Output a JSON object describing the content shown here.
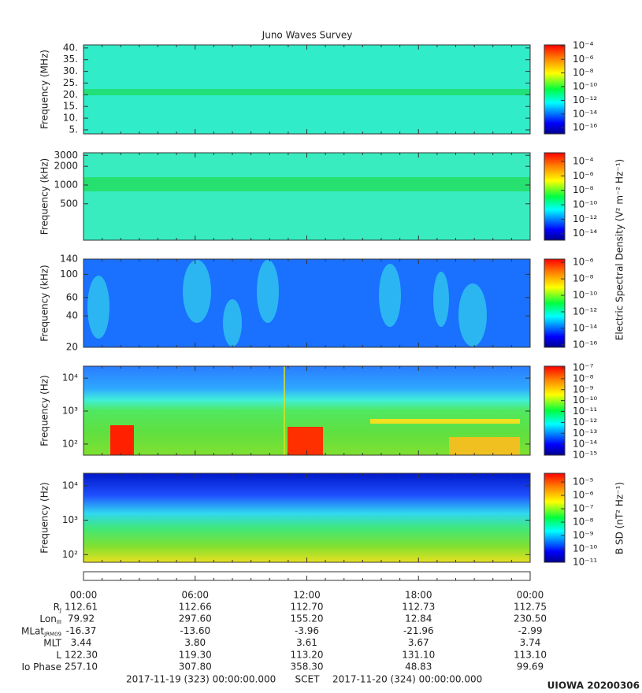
{
  "title": "Juno Waves Survey",
  "chart_data": [
    {
      "type": "spectrogram",
      "ylabel": "Frequency (MHz)",
      "yscale": "linear",
      "ylim": [
        3.3,
        41.3
      ],
      "yticks": [
        {
          "value": 40,
          "label": "40."
        },
        {
          "value": 35,
          "label": "35."
        },
        {
          "value": 30,
          "label": "30."
        },
        {
          "value": 25,
          "label": "25."
        },
        {
          "value": 20,
          "label": "20."
        },
        {
          "value": 15,
          "label": "15."
        },
        {
          "value": 10,
          "label": "10."
        },
        {
          "value": 5,
          "label": "5."
        }
      ],
      "zscale": "log",
      "zlim": [
        1.26e-17,
        0.000126
      ],
      "zticks": [
        {
          "value": 0.0001,
          "label": "10⁻⁴"
        },
        {
          "value": 1e-06,
          "label": "10⁻⁶"
        },
        {
          "value": 1e-08,
          "label": "10⁻⁸"
        },
        {
          "value": 1e-10,
          "label": "10⁻¹⁰"
        },
        {
          "value": 1e-12,
          "label": "10⁻¹²"
        },
        {
          "value": 1e-14,
          "label": "10⁻¹⁴"
        },
        {
          "value": 1e-16,
          "label": "10⁻¹⁶"
        }
      ]
    },
    {
      "type": "spectrogram",
      "ylabel": "Frequency (kHz)",
      "yscale": "log",
      "ylim": [
        130,
        3300
      ],
      "yticks": [
        3000,
        2000,
        1000,
        500
      ],
      "zscale": "log",
      "zlim": [
        1.26e-15,
        0.0016
      ],
      "zlabel": "Electric Spectral Density (V² m⁻² Hz⁻¹)",
      "zticks": [
        {
          "value": 0.0001,
          "label": "10⁻⁴"
        },
        {
          "value": 1e-06,
          "label": "10⁻⁶"
        },
        {
          "value": 1e-08,
          "label": "10⁻⁸"
        },
        {
          "value": 1e-10,
          "label": "10⁻¹⁰"
        },
        {
          "value": 1e-12,
          "label": "10⁻¹²"
        },
        {
          "value": 1e-14,
          "label": "10⁻¹⁴"
        }
      ]
    },
    {
      "type": "spectrogram",
      "ylabel": "Frequency (kHz)",
      "yscale": "log",
      "ylim": [
        20,
        140
      ],
      "yticks": [
        140,
        100,
        60,
        40,
        20
      ],
      "zscale": "log",
      "zlim": [
        5e-17,
        2.5e-06
      ],
      "zticks": [
        {
          "value": 1e-06,
          "label": "10⁻⁶"
        },
        {
          "value": 1e-08,
          "label": "10⁻⁸"
        },
        {
          "value": 1e-10,
          "label": "10⁻¹⁰"
        },
        {
          "value": 1e-12,
          "label": "10⁻¹²"
        },
        {
          "value": 1e-14,
          "label": "10⁻¹⁴"
        },
        {
          "value": 1e-16,
          "label": "10⁻¹⁶"
        }
      ]
    },
    {
      "type": "spectrogram",
      "ylabel": "Frequency (Hz)",
      "yscale": "log",
      "ylim": [
        46,
        23000
      ],
      "yticks": [
        {
          "value": 10000,
          "label": "10⁴"
        },
        {
          "value": 1000,
          "label": "10³"
        },
        {
          "value": 100,
          "label": "10²"
        }
      ],
      "zscale": "log",
      "zlim": [
        1e-15,
        1.4e-07
      ],
      "zticks": [
        {
          "value": 1e-07,
          "label": "10⁻⁷"
        },
        {
          "value": 1e-08,
          "label": "10⁻⁸"
        },
        {
          "value": 1e-09,
          "label": "10⁻⁹"
        },
        {
          "value": 1e-10,
          "label": "10⁻¹⁰"
        },
        {
          "value": 1e-11,
          "label": "10⁻¹¹"
        },
        {
          "value": 1e-12,
          "label": "10⁻¹²"
        },
        {
          "value": 1e-13,
          "label": "10⁻¹³"
        },
        {
          "value": 1e-14,
          "label": "10⁻¹⁴"
        },
        {
          "value": 1e-15,
          "label": "10⁻¹⁵"
        }
      ]
    },
    {
      "type": "spectrogram",
      "ylabel": "Frequency (Hz)",
      "yscale": "log",
      "ylim": [
        60,
        23000
      ],
      "yticks": [
        {
          "value": 10000,
          "label": "10⁴"
        },
        {
          "value": 1000,
          "label": "10³"
        },
        {
          "value": 100,
          "label": "10²"
        }
      ],
      "zscale": "log",
      "zlim": [
        1e-11,
        4.5e-05
      ],
      "zlabel": "B SD (nT² Hz⁻¹)",
      "zticks": [
        {
          "value": 1e-05,
          "label": "10⁻⁵"
        },
        {
          "value": 1e-06,
          "label": "10⁻⁶"
        },
        {
          "value": 1e-07,
          "label": "10⁻⁷"
        },
        {
          "value": 1e-08,
          "label": "10⁻⁸"
        },
        {
          "value": 1e-09,
          "label": "10⁻⁹"
        },
        {
          "value": 1e-10,
          "label": "10⁻¹⁰"
        },
        {
          "value": 1e-11,
          "label": "10⁻¹¹"
        }
      ]
    }
  ],
  "ephemeris": {
    "times": [
      "00:00",
      "06:00",
      "12:00",
      "18:00",
      "00:00"
    ],
    "rows": [
      {
        "label": "R",
        "sub": "J",
        "values": [
          "112.61",
          "112.66",
          "112.70",
          "112.73",
          "112.75"
        ]
      },
      {
        "label": "Lon",
        "sub": "III",
        "values": [
          "79.92",
          "297.60",
          "155.20",
          "12.84",
          "230.50"
        ]
      },
      {
        "label": "MLat",
        "sub": "JRM09",
        "values": [
          "-16.37",
          "-13.60",
          "-3.96",
          "-21.96",
          "-2.99"
        ]
      },
      {
        "label": "MLT",
        "values": [
          "3.44",
          "3.80",
          "3.61",
          "3.67",
          "3.74"
        ]
      },
      {
        "label": "L",
        "values": [
          "122.30",
          "119.30",
          "113.20",
          "131.10",
          "113.10"
        ]
      },
      {
        "label": "Io Phase",
        "values": [
          "257.10",
          "307.80",
          "358.30",
          "48.83",
          "99.69"
        ]
      }
    ]
  },
  "footer": {
    "start": "2017-11-19 (323) 00:00:00.000",
    "label": "SCET",
    "end": "2017-11-20 (324) 00:00:00.000"
  },
  "stamp": "UIOWA 20200306"
}
